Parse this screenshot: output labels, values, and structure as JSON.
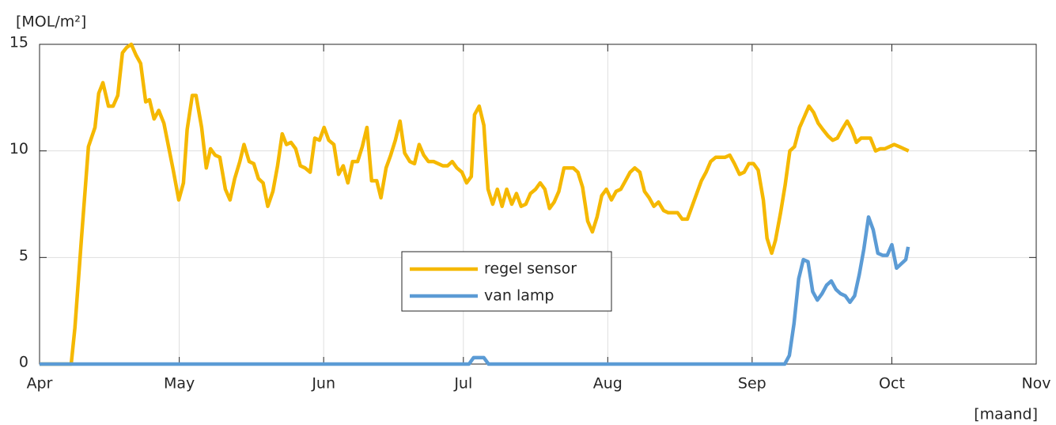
{
  "chart_data": {
    "type": "line",
    "y_label": "[MOL/m²]",
    "x_label": "[maand]",
    "xlim": [
      0,
      214
    ],
    "xticks": [
      {
        "value": 0,
        "label": "Apr"
      },
      {
        "value": 30,
        "label": "May"
      },
      {
        "value": 61,
        "label": "Jun"
      },
      {
        "value": 91,
        "label": "Jul"
      },
      {
        "value": 122,
        "label": "Aug"
      },
      {
        "value": 153,
        "label": "Sep"
      },
      {
        "value": 183,
        "label": "Oct"
      },
      {
        "value": 214,
        "label": "Nov"
      }
    ],
    "ylim": [
      0,
      15
    ],
    "yticks": [
      0,
      5,
      10,
      15
    ],
    "grid": true,
    "legend": "center",
    "series": [
      {
        "name": "regel sensor",
        "color": "#f5b800",
        "x": [
          0,
          6.8,
          7.6,
          9,
          10.5,
          11.9,
          12.7,
          13.6,
          14.8,
          15.8,
          16.8,
          17.8,
          18.7,
          19.7,
          20.7,
          21.7,
          22.8,
          23.6,
          24.6,
          25.6,
          26.7,
          27.7,
          28.7,
          29.9,
          30.9,
          31.7,
          32.8,
          33.6,
          34.8,
          35.8,
          36.7,
          37.7,
          38.7,
          39.9,
          40.9,
          41.9,
          43,
          43.9,
          45,
          46,
          47,
          48,
          49,
          50.1,
          51.1,
          52.1,
          53,
          54,
          55,
          56,
          57,
          58.1,
          59.1,
          60.1,
          61.1,
          62.1,
          63.2,
          64.2,
          65.2,
          66.2,
          67.2,
          68.3,
          69.3,
          70.3,
          71.3,
          72.4,
          73.3,
          74.4,
          75.4,
          76.4,
          77.4,
          78.4,
          79.5,
          80.5,
          81.5,
          82.5,
          83.5,
          84.6,
          85.6,
          86.6,
          87.6,
          88.6,
          89.6,
          90.7,
          91.7,
          92.7,
          93.4,
          94.4,
          95.4,
          96.3,
          97.3,
          98.3,
          99.3,
          100.3,
          101.4,
          102.4,
          103.4,
          104.4,
          105.4,
          106.5,
          107.5,
          108.5,
          109.5,
          110.5,
          111.5,
          112.6,
          113.6,
          114.6,
          115.6,
          116.6,
          117.7,
          118.7,
          119.7,
          120.7,
          121.7,
          122.8,
          123.8,
          124.8,
          125.8,
          126.8,
          127.8,
          128.9,
          129.9,
          130.9,
          131.9,
          132.9,
          134,
          135,
          136,
          137,
          138,
          139.1,
          140.1,
          141.1,
          142.1,
          143.1,
          144.1,
          145.2,
          146.2,
          147.2,
          148.2,
          149.2,
          150.3,
          151.3,
          152.3,
          153.3,
          154.3,
          155.4,
          156.2,
          157.2,
          158,
          159.1,
          160.1,
          161.1,
          162.1,
          163.2,
          164.2,
          165.2,
          166.2,
          167.2,
          168.2,
          169.3,
          170.3,
          171.3,
          172.3,
          173.4,
          174.4,
          175.4,
          176.4,
          177.4,
          178.4,
          179.5,
          180.5,
          181.5,
          182.5,
          183.5,
          184.6,
          185.6,
          186.6
        ],
        "values": [
          0,
          0,
          1.7,
          5.9,
          10.2,
          11.1,
          12.7,
          13.2,
          12.1,
          12.1,
          12.6,
          14.6,
          14.85,
          15,
          14.5,
          14.1,
          12.3,
          12.4,
          11.5,
          11.9,
          11.3,
          10.2,
          9.1,
          7.7,
          8.5,
          11.0,
          12.6,
          12.6,
          11.1,
          9.2,
          10.1,
          9.8,
          9.7,
          8.2,
          7.7,
          8.7,
          9.5,
          10.3,
          9.5,
          9.4,
          8.7,
          8.5,
          7.4,
          8.1,
          9.3,
          10.8,
          10.3,
          10.4,
          10.1,
          9.3,
          9.2,
          9.0,
          10.6,
          10.5,
          11.1,
          10.5,
          10.3,
          8.9,
          9.3,
          8.5,
          9.5,
          9.5,
          10.2,
          11.1,
          8.6,
          8.6,
          7.8,
          9.2,
          9.8,
          10.5,
          11.4,
          9.9,
          9.5,
          9.4,
          10.3,
          9.8,
          9.5,
          9.5,
          9.4,
          9.3,
          9.3,
          9.5,
          9.2,
          9.0,
          8.5,
          8.8,
          11.7,
          12.1,
          11.2,
          8.2,
          7.5,
          8.2,
          7.4,
          8.2,
          7.5,
          8.0,
          7.4,
          7.5,
          8.0,
          8.2,
          8.5,
          8.2,
          7.3,
          7.6,
          8.1,
          9.2,
          9.2,
          9.2,
          9.0,
          8.3,
          6.7,
          6.2,
          6.9,
          7.9,
          8.2,
          7.7,
          8.1,
          8.2,
          8.6,
          9.0,
          9.2,
          9.0,
          8.1,
          7.8,
          7.4,
          7.6,
          7.2,
          7.1,
          7.1,
          7.1,
          6.8,
          6.8,
          7.4,
          8.0,
          8.6,
          9.0,
          9.5,
          9.7,
          9.7,
          9.7,
          9.8,
          9.4,
          8.9,
          9.0,
          9.4,
          9.4,
          9.1,
          7.7,
          5.9,
          5.2,
          5.8,
          7.1,
          8.4,
          10.0,
          10.2,
          11.1,
          11.6,
          12.1,
          11.8,
          11.3,
          11.0,
          10.7,
          10.5,
          10.6,
          11.0,
          11.4,
          11.0,
          10.4,
          10.6,
          10.6,
          10.6,
          10.0,
          10.1,
          10.1,
          10.2,
          10.3,
          10.2,
          10.1,
          10.0
        ]
      },
      {
        "name": "van lamp",
        "color": "#5b9bd5",
        "x": [
          0,
          92.2,
          93.2,
          95.4,
          96.4,
          160,
          161,
          162,
          163,
          164,
          165,
          166,
          167,
          168,
          169,
          170,
          171,
          172,
          173,
          174,
          175,
          176,
          177,
          178,
          179,
          180,
          181,
          182,
          183,
          184,
          185,
          186,
          186.5
        ],
        "values": [
          0,
          0,
          0.3,
          0.3,
          0,
          0,
          0.4,
          1.9,
          4.0,
          4.9,
          4.8,
          3.4,
          3.0,
          3.3,
          3.7,
          3.9,
          3.5,
          3.3,
          3.2,
          2.9,
          3.2,
          4.2,
          5.4,
          6.9,
          6.3,
          5.2,
          5.1,
          5.1,
          5.6,
          4.5,
          4.7,
          4.9,
          5.5
        ]
      }
    ]
  }
}
